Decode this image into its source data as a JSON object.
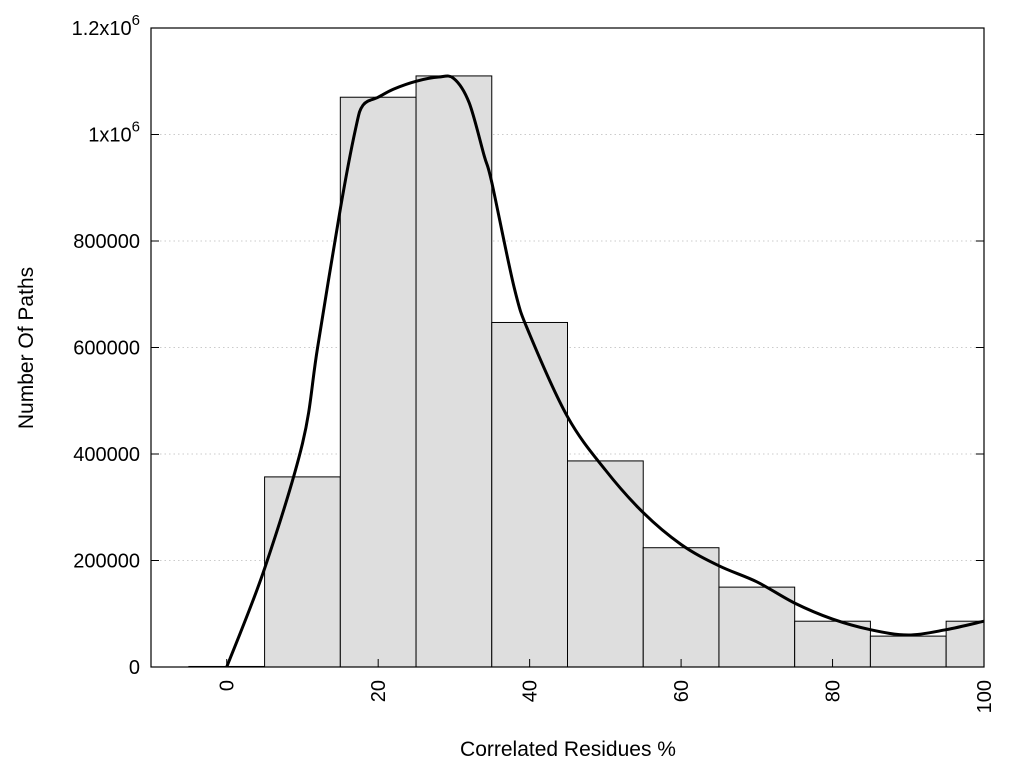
{
  "chart_data": {
    "type": "bar",
    "title": "",
    "xlabel": "Correlated Residues %",
    "ylabel": "Number Of Paths",
    "xlim": [
      -10,
      100
    ],
    "ylim": [
      0,
      1200000
    ],
    "grid": "horizontal dotted",
    "x_ticks": [
      {
        "value": 0,
        "label": "0"
      },
      {
        "value": 20,
        "label": "20"
      },
      {
        "value": 40,
        "label": "40"
      },
      {
        "value": 60,
        "label": "60"
      },
      {
        "value": 80,
        "label": "80"
      },
      {
        "value": 100,
        "label": "100"
      }
    ],
    "y_ticks": [
      {
        "value": 0,
        "base": "0",
        "exp": ""
      },
      {
        "value": 200000,
        "base": "200000",
        "exp": ""
      },
      {
        "value": 400000,
        "base": "400000",
        "exp": ""
      },
      {
        "value": 600000,
        "base": "600000",
        "exp": ""
      },
      {
        "value": 800000,
        "base": "800000",
        "exp": ""
      },
      {
        "value": 1000000,
        "base": "1x10",
        "exp": "6"
      },
      {
        "value": 1200000,
        "base": "1.2x10",
        "exp": "6"
      }
    ],
    "bin_width": 10,
    "categories": [
      0,
      10,
      20,
      30,
      40,
      50,
      60,
      70,
      80,
      90,
      100
    ],
    "values": [
      1000,
      357000,
      1070000,
      1110000,
      647000,
      387000,
      224000,
      150000,
      86000,
      58000,
      86000
    ],
    "curve": {
      "x": [
        0,
        5,
        10,
        12,
        15,
        17,
        18,
        20,
        22,
        25,
        28,
        30,
        32,
        34,
        35,
        38,
        40,
        45,
        50,
        55,
        60,
        65,
        70,
        75,
        80,
        85,
        90,
        95,
        100
      ],
      "y": [
        0,
        185000,
        420000,
        600000,
        860000,
        1010000,
        1055000,
        1070000,
        1085000,
        1100000,
        1108000,
        1105000,
        1060000,
        960000,
        910000,
        710000,
        625000,
        470000,
        370000,
        290000,
        230000,
        190000,
        160000,
        120000,
        90000,
        70000,
        60000,
        70000,
        86000
      ]
    },
    "colors": {
      "bar_fill": "#dedede",
      "bar_stroke": "#000000",
      "curve": "#000000",
      "grid": "#bbbbbb"
    }
  }
}
